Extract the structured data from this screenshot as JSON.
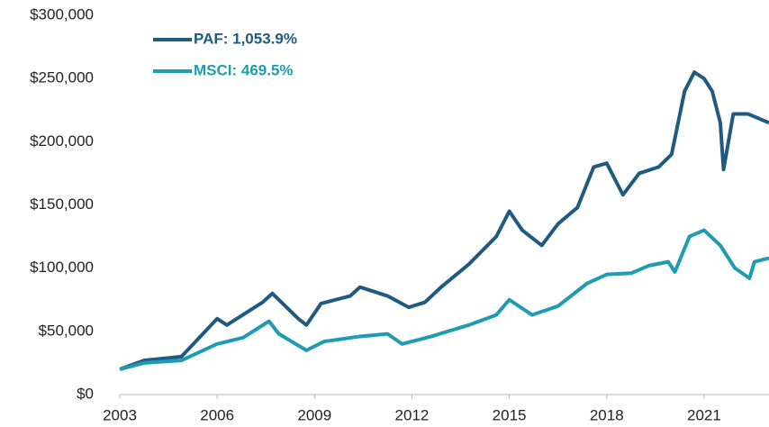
{
  "chart_data": {
    "type": "line",
    "ylim": [
      0,
      300000
    ],
    "yticks": [
      {
        "value": 0,
        "label": "$0"
      },
      {
        "value": 50000,
        "label": "$50,000"
      },
      {
        "value": 100000,
        "label": "$100,000"
      },
      {
        "value": 150000,
        "label": "$150,000"
      },
      {
        "value": 200000,
        "label": "$200,000"
      },
      {
        "value": 250000,
        "label": "$250,000"
      },
      {
        "value": 300000,
        "label": "$300,000"
      }
    ],
    "xlim": [
      2003,
      2023
    ],
    "xticks": [
      2003,
      2006,
      2009,
      2012,
      2015,
      2018,
      2021
    ],
    "grid": false,
    "legend": "top-left",
    "series": [
      {
        "name": "PAF: 1,053.9%",
        "color": "#1f5a80",
        "x": [
          2003,
          2003.75,
          2004.9,
          2006,
          2006.3,
          2007.4,
          2007.7,
          2008.5,
          2008.75,
          2009.2,
          2010.1,
          2010.4,
          2011.25,
          2011.9,
          2012.4,
          2012.9,
          2013.75,
          2014.6,
          2015,
          2015.4,
          2016,
          2016.5,
          2017.1,
          2017.6,
          2018,
          2018.5,
          2019,
          2019.6,
          2020,
          2020.4,
          2020.7,
          2021,
          2021.25,
          2021.5,
          2021.6,
          2021.9,
          2022.35,
          2023
        ],
        "values": [
          20000,
          27000,
          30000,
          60000,
          55000,
          73000,
          80000,
          60000,
          55000,
          72000,
          78000,
          85000,
          78000,
          69000,
          73000,
          85000,
          103000,
          125000,
          145000,
          130000,
          118000,
          135000,
          148000,
          180000,
          183000,
          158000,
          175000,
          180000,
          190000,
          240000,
          255000,
          250000,
          240000,
          215000,
          178000,
          222000,
          222000,
          215000
        ]
      },
      {
        "name": "MSCI: 469.5%",
        "color": "#1e9cb2",
        "x": [
          2003,
          2003.75,
          2004.9,
          2006,
          2006.8,
          2007.6,
          2007.9,
          2008.75,
          2009.3,
          2010.4,
          2011.25,
          2011.7,
          2012.6,
          2013.75,
          2014.6,
          2015,
          2015.7,
          2016.5,
          2017.4,
          2018,
          2018.75,
          2019.3,
          2019.9,
          2020.1,
          2020.55,
          2021,
          2021.5,
          2021.95,
          2022.4,
          2022.55,
          2023
        ],
        "values": [
          20000,
          25000,
          27000,
          40000,
          45000,
          58000,
          48000,
          35000,
          42000,
          46000,
          48000,
          40000,
          46000,
          55000,
          63000,
          75000,
          63000,
          70000,
          88000,
          95000,
          96000,
          102000,
          105000,
          97000,
          125000,
          130000,
          118000,
          100000,
          92000,
          105000,
          108000
        ]
      }
    ]
  }
}
